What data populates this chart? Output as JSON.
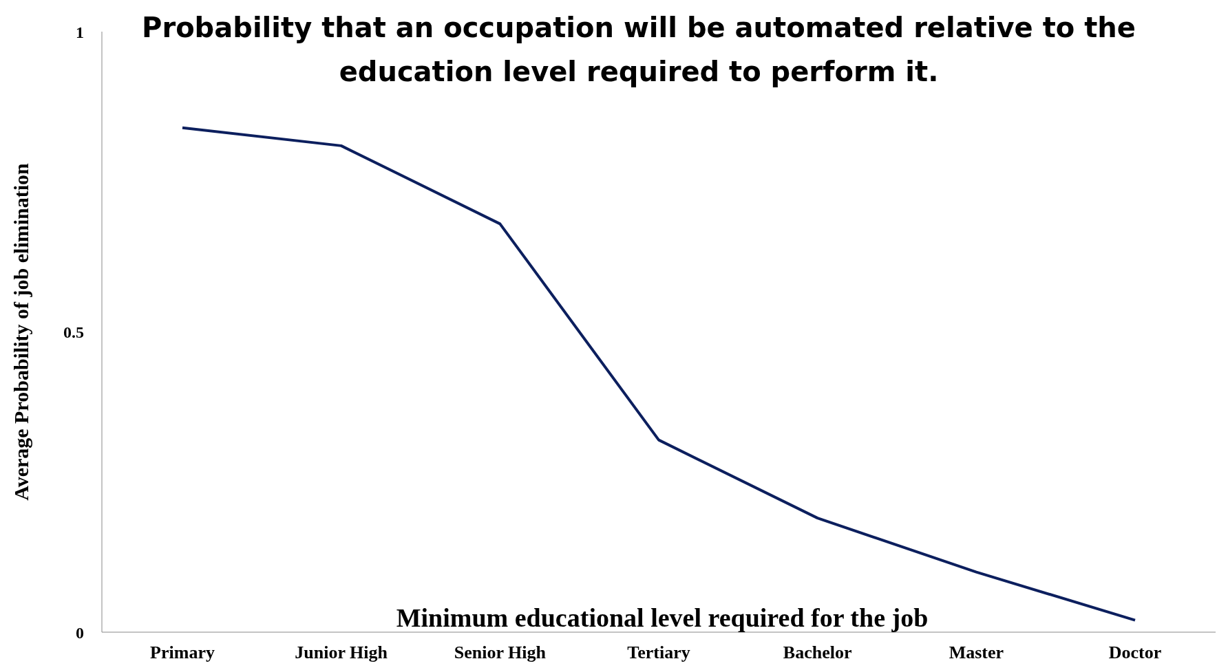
{
  "chart_data": {
    "type": "line",
    "title": "Probability that an occupation will be automated relative to the education level required to perform it.",
    "xlabel": "Minimum educational level required for the job",
    "ylabel": "Average Probability of job elimination",
    "categories": [
      "Primary",
      "Junior High",
      "Senior High",
      "Tertiary",
      "Bachelor",
      "Master",
      "Doctor"
    ],
    "series": [
      {
        "color": "#0c1f5e",
        "values": [
          0.84,
          0.81,
          0.68,
          0.32,
          0.19,
          0.1,
          0.02
        ]
      }
    ],
    "ylim": [
      0,
      1
    ],
    "yticks": [
      0,
      0.5,
      1
    ],
    "grid": false,
    "legend": false,
    "marker": "none",
    "line_style": "solid"
  }
}
